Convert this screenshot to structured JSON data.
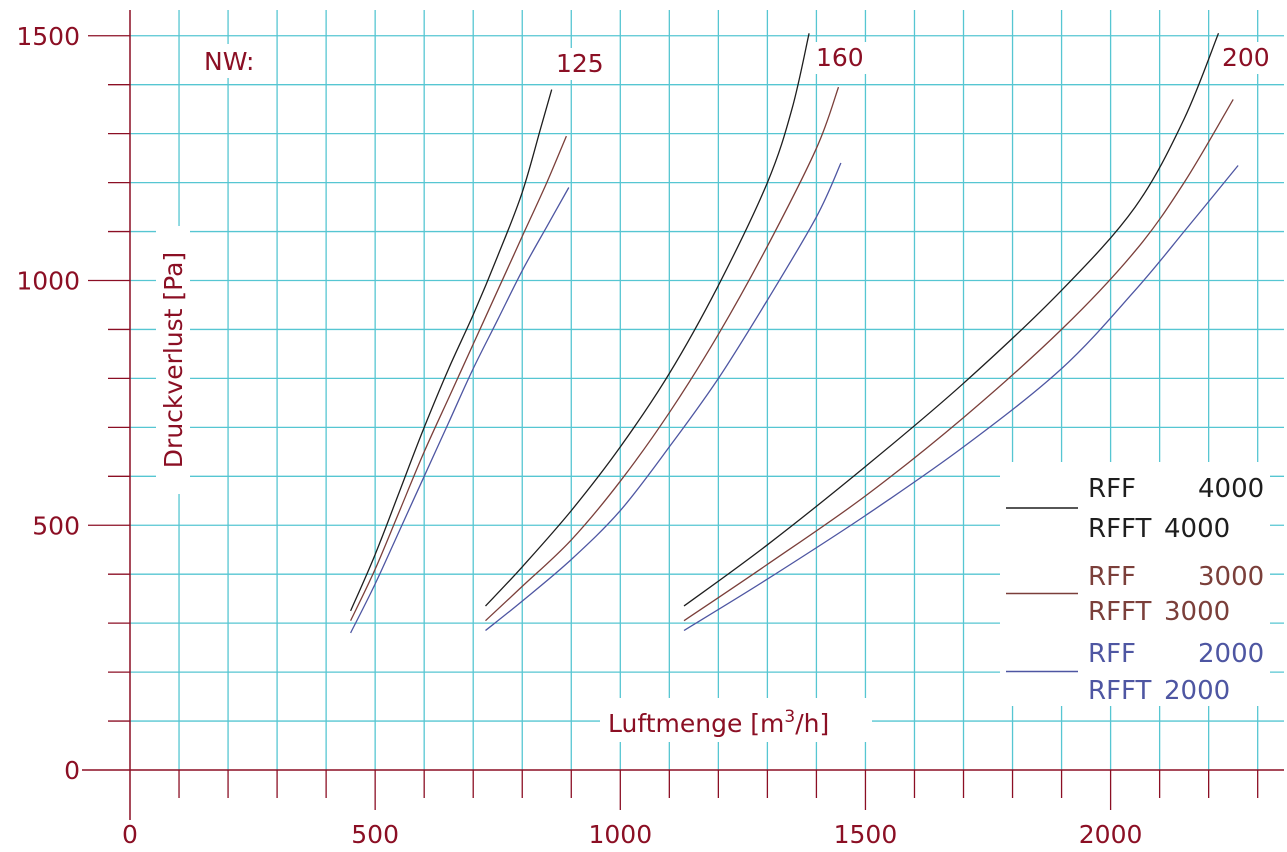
{
  "colors": {
    "grid": "#56c6d2",
    "axis": "#8b0f24",
    "black_series": "#1e1e1e",
    "brown_series": "#7b3f3a",
    "blue_series": "#4e56a2"
  },
  "chart_data": {
    "type": "line",
    "xlabel": "Luftmenge [m³/h]",
    "xlabel_main": "Luftmenge [m",
    "xlabel_sup": "3",
    "xlabel_end": "/h]",
    "ylabel": "Druckverlust [Pa]",
    "xlim": [
      0,
      2300
    ],
    "ylim": [
      0,
      1500
    ],
    "x_ticks": [
      0,
      500,
      1000,
      1500,
      2000
    ],
    "y_ticks": [
      0,
      500,
      1000,
      1500
    ],
    "x_tick_labels": [
      "0",
      "500",
      "1000",
      "1500",
      "2000"
    ],
    "y_tick_labels": [
      "0",
      "500",
      "1000",
      "1500"
    ],
    "grid": true,
    "nw_label": "NW:",
    "nw_sizes": [
      {
        "label": "125",
        "x": 880,
        "y": 1440
      },
      {
        "label": "160",
        "x": 1435,
        "y": 1450
      },
      {
        "label": "200",
        "x": 2265,
        "y": 1450
      }
    ],
    "legend": {
      "placement": "right",
      "entries": [
        {
          "color_key": "black_series",
          "line1_type": "RFF",
          "line1_value": "4000",
          "line2_type": "RFFT",
          "line2_value": "4000"
        },
        {
          "color_key": "brown_series",
          "line1_type": "RFF",
          "line1_value": "3000",
          "line2_type": "RFFT",
          "line2_value": "3000"
        },
        {
          "color_key": "blue_series",
          "line1_type": "RFF",
          "line1_value": "2000",
          "line2_type": "RFFT",
          "line2_value": "2000"
        }
      ]
    },
    "series": [
      {
        "group": "125",
        "color_key": "black_series",
        "points": [
          [
            450,
            325
          ],
          [
            500,
            440
          ],
          [
            550,
            570
          ],
          [
            600,
            700
          ],
          [
            650,
            820
          ],
          [
            700,
            930
          ],
          [
            750,
            1050
          ],
          [
            800,
            1180
          ],
          [
            840,
            1320
          ],
          [
            860,
            1390
          ]
        ]
      },
      {
        "group": "125",
        "color_key": "brown_series",
        "points": [
          [
            450,
            305
          ],
          [
            500,
            410
          ],
          [
            550,
            530
          ],
          [
            600,
            650
          ],
          [
            650,
            760
          ],
          [
            700,
            870
          ],
          [
            750,
            980
          ],
          [
            800,
            1090
          ],
          [
            850,
            1200
          ],
          [
            890,
            1295
          ]
        ]
      },
      {
        "group": "125",
        "color_key": "blue_series",
        "points": [
          [
            450,
            280
          ],
          [
            500,
            380
          ],
          [
            550,
            490
          ],
          [
            600,
            600
          ],
          [
            650,
            710
          ],
          [
            700,
            820
          ],
          [
            750,
            920
          ],
          [
            800,
            1020
          ],
          [
            850,
            1110
          ],
          [
            895,
            1190
          ]
        ]
      },
      {
        "group": "160",
        "color_key": "black_series",
        "points": [
          [
            725,
            335
          ],
          [
            800,
            415
          ],
          [
            900,
            530
          ],
          [
            1000,
            660
          ],
          [
            1100,
            810
          ],
          [
            1200,
            990
          ],
          [
            1300,
            1200
          ],
          [
            1350,
            1350
          ],
          [
            1385,
            1505
          ]
        ]
      },
      {
        "group": "160",
        "color_key": "brown_series",
        "points": [
          [
            725,
            305
          ],
          [
            800,
            375
          ],
          [
            900,
            470
          ],
          [
            1000,
            590
          ],
          [
            1100,
            730
          ],
          [
            1200,
            890
          ],
          [
            1300,
            1070
          ],
          [
            1400,
            1270
          ],
          [
            1445,
            1395
          ]
        ]
      },
      {
        "group": "160",
        "color_key": "blue_series",
        "points": [
          [
            725,
            285
          ],
          [
            800,
            345
          ],
          [
            900,
            430
          ],
          [
            1000,
            530
          ],
          [
            1100,
            660
          ],
          [
            1200,
            800
          ],
          [
            1300,
            960
          ],
          [
            1400,
            1130
          ],
          [
            1450,
            1240
          ]
        ]
      },
      {
        "group": "200",
        "color_key": "black_series",
        "points": [
          [
            1130,
            335
          ],
          [
            1300,
            460
          ],
          [
            1500,
            620
          ],
          [
            1700,
            790
          ],
          [
            1900,
            980
          ],
          [
            2050,
            1150
          ],
          [
            2150,
            1330
          ],
          [
            2220,
            1505
          ]
        ]
      },
      {
        "group": "200",
        "color_key": "brown_series",
        "points": [
          [
            1130,
            305
          ],
          [
            1300,
            420
          ],
          [
            1500,
            560
          ],
          [
            1700,
            720
          ],
          [
            1900,
            900
          ],
          [
            2050,
            1060
          ],
          [
            2150,
            1200
          ],
          [
            2250,
            1370
          ]
        ]
      },
      {
        "group": "200",
        "color_key": "blue_series",
        "points": [
          [
            1130,
            285
          ],
          [
            1300,
            390
          ],
          [
            1500,
            520
          ],
          [
            1700,
            660
          ],
          [
            1900,
            820
          ],
          [
            2050,
            980
          ],
          [
            2150,
            1100
          ],
          [
            2260,
            1235
          ]
        ]
      }
    ]
  }
}
